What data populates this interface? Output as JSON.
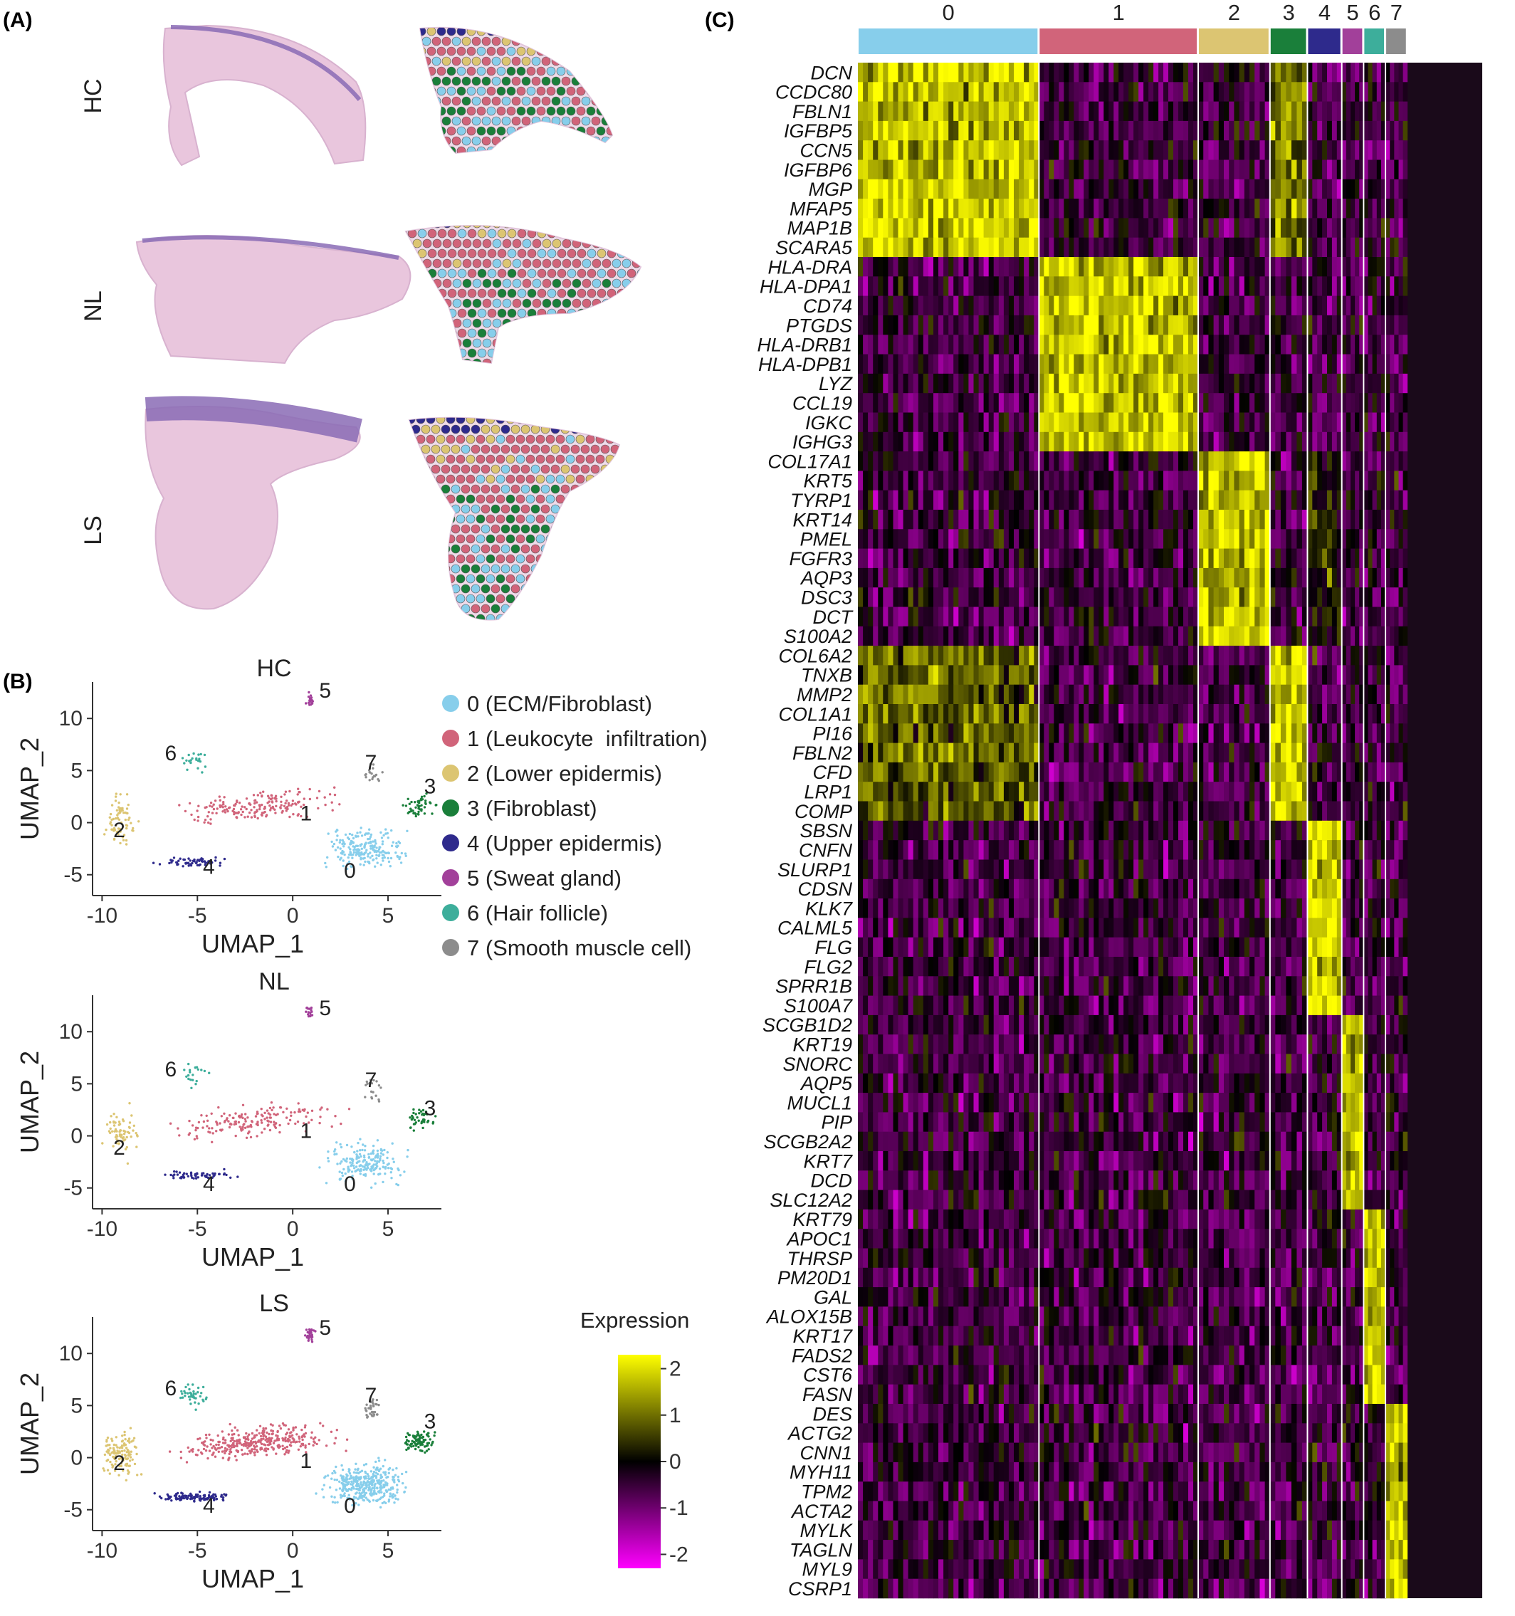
{
  "panels": {
    "a": "(A)",
    "b": "(B)",
    "c": "(C)"
  },
  "panel_a": {
    "rows": [
      "HC",
      "NL",
      "LS"
    ]
  },
  "colors": {
    "0": "#87CEEB",
    "1": "#D1647A",
    "2": "#DCC572",
    "3": "#1A7F3A",
    "4": "#2E2A8C",
    "5": "#A2409A",
    "6": "#3DAE9B",
    "7": "#8C8C8C",
    "heat_low": "#FF00FF",
    "heat_mid": "#000000",
    "heat_high": "#FFFF00",
    "he_pink": "#E9C6DD",
    "he_purple": "#8A6BB5"
  },
  "legend": {
    "items": [
      "0 (ECM/Fibroblast)",
      "1 (Leukocyte  infiltration)",
      "2 (Lower epidermis)",
      "3 (Fibroblast)",
      "4 (Upper epidermis)",
      "5 (Sweat gland)",
      "6 (Hair follicle)",
      "7 (Smooth muscle cell)"
    ]
  },
  "chart_data": [
    {
      "type": "scatter",
      "title": "HC",
      "xlabel": "UMAP_1",
      "ylabel": "UMAP_2",
      "xticks": [
        -10,
        -5,
        0,
        5
      ],
      "yticks": [
        10,
        5,
        0,
        -5
      ],
      "xlim": [
        -10.5,
        7.8
      ],
      "ylim": [
        -7,
        13.5
      ],
      "density": 0.55,
      "cluster_labels": [
        {
          "id": "0",
          "x": 3.0,
          "y": -5.3
        },
        {
          "id": "1",
          "x": 0.7,
          "y": 0.2
        },
        {
          "id": "2",
          "x": -9.1,
          "y": -1.4
        },
        {
          "id": "3",
          "x": 7.2,
          "y": 2.8
        },
        {
          "id": "4",
          "x": -4.4,
          "y": -4.9
        },
        {
          "id": "5",
          "x": 1.7,
          "y": 12.0
        },
        {
          "id": "6",
          "x": -6.4,
          "y": 6.0
        },
        {
          "id": "7",
          "x": 4.1,
          "y": 5.1
        }
      ]
    },
    {
      "type": "scatter",
      "title": "NL",
      "xlabel": "UMAP_1",
      "ylabel": "UMAP_2",
      "xticks": [
        -10,
        -5,
        0,
        5
      ],
      "yticks": [
        10,
        5,
        0,
        -5
      ],
      "xlim": [
        -10.5,
        7.8
      ],
      "ylim": [
        -7,
        13.5
      ],
      "density": 0.5,
      "cluster_labels": [
        {
          "id": "0",
          "x": 3.0,
          "y": -5.3
        },
        {
          "id": "1",
          "x": 0.7,
          "y": -0.2
        },
        {
          "id": "2",
          "x": -9.1,
          "y": -1.8
        },
        {
          "id": "3",
          "x": 7.2,
          "y": 2.0
        },
        {
          "id": "4",
          "x": -4.4,
          "y": -5.3
        },
        {
          "id": "5",
          "x": 1.7,
          "y": 11.6
        },
        {
          "id": "6",
          "x": -6.4,
          "y": 5.7
        },
        {
          "id": "7",
          "x": 4.1,
          "y": 4.7
        }
      ]
    },
    {
      "type": "scatter",
      "title": "LS",
      "xlabel": "UMAP_1",
      "ylabel": "UMAP_2",
      "xticks": [
        -10,
        -5,
        0,
        5
      ],
      "yticks": [
        10,
        5,
        0,
        -5
      ],
      "xlim": [
        -10.5,
        7.8
      ],
      "ylim": [
        -7,
        13.5
      ],
      "density": 1.0,
      "cluster_labels": [
        {
          "id": "0",
          "x": 3.0,
          "y": -5.3
        },
        {
          "id": "1",
          "x": 0.7,
          "y": -1.0
        },
        {
          "id": "2",
          "x": -9.1,
          "y": -1.2
        },
        {
          "id": "3",
          "x": 7.2,
          "y": 2.8
        },
        {
          "id": "4",
          "x": -4.4,
          "y": -5.3
        },
        {
          "id": "5",
          "x": 1.7,
          "y": 11.8
        },
        {
          "id": "6",
          "x": -6.4,
          "y": 6.0
        },
        {
          "id": "7",
          "x": 4.1,
          "y": 5.3
        }
      ]
    },
    {
      "type": "heatmap",
      "title": "",
      "clusters": [
        "0",
        "1",
        "2",
        "3",
        "4",
        "5",
        "6",
        "7"
      ],
      "cluster_cell_share": [
        0.29,
        0.255,
        0.115,
        0.06,
        0.055,
        0.035,
        0.035,
        0.035
      ],
      "colorbar_title": "Expression",
      "colorbar_ticks": [
        2,
        1,
        0,
        -1,
        -2
      ],
      "colorbar_range": [
        -2.3,
        2.3
      ],
      "gene_groups": [
        {
          "cluster": 0,
          "genes": [
            "DCN",
            "CCDC80",
            "FBLN1",
            "IGFBP5",
            "CCN5",
            "IGFBP6",
            "MGP",
            "MFAP5",
            "MAP1B",
            "SCARA5"
          ]
        },
        {
          "cluster": 1,
          "genes": [
            "HLA-DRA",
            "HLA-DPA1",
            "CD74",
            "PTGDS",
            "HLA-DRB1",
            "HLA-DPB1",
            "LYZ",
            "CCL19",
            "IGKC",
            "IGHG3"
          ]
        },
        {
          "cluster": 2,
          "genes": [
            "COL17A1",
            "KRT5",
            "TYRP1",
            "KRT14",
            "PMEL",
            "FGFR3",
            "AQP3",
            "DSC3",
            "DCT",
            "S100A2"
          ]
        },
        {
          "cluster": 3,
          "genes": [
            "COL6A2",
            "TNXB",
            "MMP2",
            "COL1A1",
            "PI16",
            "FBLN2",
            "CFD",
            "LRP1",
            "COMP"
          ]
        },
        {
          "cluster": 4,
          "genes": [
            "SBSN",
            "CNFN",
            "SLURP1",
            "CDSN",
            "KLK7",
            "CALML5",
            "FLG",
            "FLG2",
            "SPRR1B",
            "S100A7"
          ]
        },
        {
          "cluster": 5,
          "genes": [
            "SCGB1D2",
            "KRT19",
            "SNORC",
            "AQP5",
            "MUCL1",
            "PIP",
            "SCGB2A2",
            "KRT7",
            "DCD",
            "SLC12A2"
          ]
        },
        {
          "cluster": 6,
          "genes": [
            "KRT79",
            "APOC1",
            "THRSP",
            "PM20D1",
            "GAL",
            "ALOX15B",
            "KRT17",
            "FADS2",
            "CST6",
            "FASN"
          ]
        },
        {
          "cluster": 7,
          "genes": [
            "DES",
            "ACTG2",
            "CNN1",
            "MYH11",
            "TPM2",
            "ACTA2",
            "MYLK",
            "TAGLN",
            "MYL9",
            "CSRP1"
          ]
        }
      ]
    }
  ]
}
